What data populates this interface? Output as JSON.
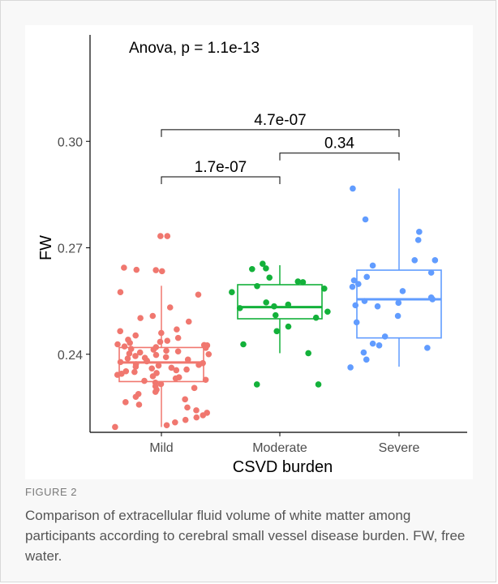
{
  "figure": {
    "label": "FIGURE 2",
    "caption": "Comparison of extracellular fluid volume of white matter among participants according to cerebral small vessel disease burden. FW, free water."
  },
  "chart_data": {
    "type": "box",
    "title": "Anova, p = 1.1e-13",
    "xlabel": "CSVD burden",
    "ylabel": "FW",
    "categories": [
      "Mild",
      "Moderate",
      "Severe"
    ],
    "colors": [
      "#f0776f",
      "#13b13a",
      "#619cff"
    ],
    "ylim": [
      0.218,
      0.33
    ],
    "yticks": [
      0.24,
      0.27,
      0.3
    ],
    "ytick_labels": [
      "0.24",
      "0.27",
      "0.30"
    ],
    "boxes": [
      {
        "category": "Mild",
        "whisker_low": 0.2195,
        "q1": 0.2323,
        "median": 0.2377,
        "q3": 0.2419,
        "whisker_high": 0.2593
      },
      {
        "category": "Moderate",
        "whisker_low": 0.2403,
        "q1": 0.25,
        "median": 0.2533,
        "q3": 0.2596,
        "whisker_high": 0.2651
      },
      {
        "category": "Severe",
        "whisker_low": 0.2365,
        "q1": 0.2446,
        "median": 0.2555,
        "q3": 0.2637,
        "whisker_high": 0.2867
      }
    ],
    "points": [
      {
        "category": "Mild",
        "values": [
          0.2733,
          0.2733,
          0.2644,
          0.2638,
          0.2637,
          0.2634,
          0.2575,
          0.2568,
          0.2532,
          0.2508,
          0.2502,
          0.2492,
          0.247,
          0.2465,
          0.246,
          0.2453,
          0.2446,
          0.2441,
          0.2438,
          0.2435,
          0.2432,
          0.2428,
          0.2426,
          0.2425,
          0.2422,
          0.242,
          0.2418,
          0.2415,
          0.2413,
          0.241,
          0.2408,
          0.2405,
          0.2402,
          0.24,
          0.2398,
          0.2395,
          0.2392,
          0.239,
          0.2388,
          0.2385,
          0.2382,
          0.238,
          0.2378,
          0.2375,
          0.2372,
          0.237,
          0.2368,
          0.2365,
          0.2362,
          0.236,
          0.2357,
          0.2355,
          0.2352,
          0.235,
          0.2347,
          0.2345,
          0.2342,
          0.2338,
          0.2335,
          0.2332,
          0.2328,
          0.2325,
          0.232,
          0.2316,
          0.231,
          0.2305,
          0.23,
          0.2294,
          0.2288,
          0.228,
          0.2273,
          0.2265,
          0.2258,
          0.225,
          0.2242,
          0.2235,
          0.2228,
          0.2222,
          0.2215,
          0.2208,
          0.22,
          0.2195
        ]
      },
      {
        "category": "Moderate",
        "values": [
          0.2655,
          0.2642,
          0.264,
          0.2616,
          0.2605,
          0.2603,
          0.2592,
          0.2585,
          0.2575,
          0.2546,
          0.254,
          0.2535,
          0.253,
          0.252,
          0.251,
          0.2503,
          0.2478,
          0.2465,
          0.2428,
          0.2403,
          0.2315,
          0.2315
        ]
      },
      {
        "category": "Severe",
        "values": [
          0.2867,
          0.278,
          0.2745,
          0.2722,
          0.2665,
          0.2665,
          0.265,
          0.263,
          0.2618,
          0.2608,
          0.2598,
          0.259,
          0.2578,
          0.256,
          0.2555,
          0.255,
          0.2545,
          0.2538,
          0.2535,
          0.2508,
          0.249,
          0.245,
          0.243,
          0.2425,
          0.2418,
          0.2405,
          0.2385,
          0.2363
        ]
      }
    ],
    "comparisons": [
      {
        "groups": [
          "Mild",
          "Moderate"
        ],
        "label": "1.7e-07",
        "y": 0.29
      },
      {
        "groups": [
          "Moderate",
          "Severe"
        ],
        "label": "0.34",
        "y": 0.2967
      },
      {
        "groups": [
          "Mild",
          "Severe"
        ],
        "label": "4.7e-07",
        "y": 0.3033
      }
    ],
    "legend": false,
    "grid": false
  }
}
